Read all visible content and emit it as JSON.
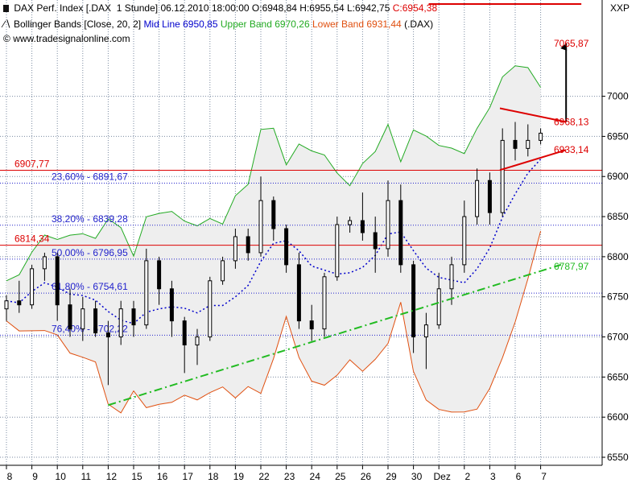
{
  "header": {
    "line1_name": "DAX Perf. Index [.DAX  1 Stunde]",
    "line1_date": "06.12.2010 18:00:00",
    "line1_ohl": "O:6948,84 H:6955,54 L:6942,75",
    "line1_close": "C:6954,38",
    "line2_name": "Bollinger Bands [Close, 20, 2]",
    "line2_mid": "Mid Line 6950,85",
    "line2_upper": "Upper Band 6970,26",
    "line2_lower": "Lower Band 6931,44",
    "line2_symbol": "(.DAX)",
    "site": "www.tradesignalonline.com"
  },
  "colors": {
    "text": "#000000",
    "mid_line": "#0000cc",
    "upper_band": "#22aa22",
    "lower_band": "#e05010",
    "horizontal": "#dd0000",
    "fib": "#2222cc",
    "trend": "#22bb22",
    "bull": "#000000",
    "bear": "#000000"
  },
  "chart_data": {
    "type": "candlestick",
    "ylabel": "XXP",
    "ylim": [
      6540,
      7120
    ],
    "yticks": [
      6550,
      6600,
      6650,
      6700,
      6750,
      6800,
      6850,
      6900,
      6950,
      7000
    ],
    "ytick_labels": [
      "6550",
      "6600",
      "6650",
      "6700",
      "6750",
      "6800",
      "6850",
      "6900",
      "6950",
      "7000"
    ],
    "x_labels": [
      "8",
      "9",
      "10",
      "11",
      "12",
      "15",
      "16",
      "17",
      "18",
      "19",
      "22",
      "23",
      "24",
      "25",
      "26",
      "29",
      "30",
      "Dez",
      "2",
      "3",
      "6",
      "7"
    ],
    "horizontal_lines": [
      {
        "label": "6907,77",
        "value": 6907.77,
        "style": "solid",
        "color": "red"
      },
      {
        "label": "6814,34",
        "value": 6814.34,
        "style": "solid",
        "color": "red"
      }
    ],
    "fibonacci": [
      {
        "label": "23,60% - 6891,67",
        "value": 6891.67
      },
      {
        "label": "38,20% - 6839,28",
        "value": 6839.28
      },
      {
        "label": "50,00% - 6796,95",
        "value": 6796.95
      },
      {
        "label": "61,80% - 6754,61",
        "value": 6754.61
      },
      {
        "label": "76,40% - 6702,22",
        "value": 6702.22
      }
    ],
    "annotations": [
      {
        "label": "7065,87",
        "value": 7065.87
      },
      {
        "label": "6968,13",
        "value": 6968.13
      },
      {
        "label": "6933,14",
        "value": 6933.14
      },
      {
        "label": "6787,97",
        "value": 6787.97
      }
    ],
    "trendline": {
      "style": "dash-dot",
      "points": [
        [
          12,
          6615
        ],
        [
          49,
          6790
        ]
      ]
    },
    "triangle": {
      "upper": [
        [
          38,
          6985
        ],
        [
          44,
          6968
        ]
      ],
      "lower": [
        [
          38,
          6908
        ],
        [
          44,
          6933
        ]
      ]
    },
    "projection": [
      [
        44,
        6968
      ],
      [
        46.5,
        7065.87
      ]
    ],
    "close_marker": {
      "label": "C:6954,38",
      "value": 7115
    },
    "candles": [
      {
        "day": 0,
        "o": 6735,
        "h": 6752,
        "l": 6720,
        "c": 6745
      },
      {
        "day": 0.5,
        "o": 6745,
        "h": 6770,
        "l": 6730,
        "c": 6740
      },
      {
        "day": 1,
        "o": 6740,
        "h": 6790,
        "l": 6735,
        "c": 6785
      },
      {
        "day": 1.5,
        "o": 6785,
        "h": 6805,
        "l": 6770,
        "c": 6800
      },
      {
        "day": 2,
        "o": 6800,
        "h": 6805,
        "l": 6720,
        "c": 6740
      },
      {
        "day": 2.5,
        "o": 6740,
        "h": 6760,
        "l": 6700,
        "c": 6710
      },
      {
        "day": 3,
        "o": 6710,
        "h": 6750,
        "l": 6695,
        "c": 6735
      },
      {
        "day": 3.5,
        "o": 6735,
        "h": 6745,
        "l": 6700,
        "c": 6705
      },
      {
        "day": 4,
        "o": 6705,
        "h": 6720,
        "l": 6640,
        "c": 6700
      },
      {
        "day": 4.5,
        "o": 6700,
        "h": 6745,
        "l": 6690,
        "c": 6735
      },
      {
        "day": 5,
        "o": 6735,
        "h": 6745,
        "l": 6700,
        "c": 6715
      },
      {
        "day": 5.5,
        "o": 6715,
        "h": 6810,
        "l": 6710,
        "c": 6795
      },
      {
        "day": 6,
        "o": 6795,
        "h": 6800,
        "l": 6740,
        "c": 6760
      },
      {
        "day": 6.5,
        "o": 6760,
        "h": 6770,
        "l": 6700,
        "c": 6720
      },
      {
        "day": 7,
        "o": 6720,
        "h": 6725,
        "l": 6655,
        "c": 6690
      },
      {
        "day": 7.5,
        "o": 6690,
        "h": 6710,
        "l": 6665,
        "c": 6700
      },
      {
        "day": 8,
        "o": 6700,
        "h": 6775,
        "l": 6695,
        "c": 6770
      },
      {
        "day": 8.5,
        "o": 6770,
        "h": 6800,
        "l": 6765,
        "c": 6795
      },
      {
        "day": 9,
        "o": 6795,
        "h": 6835,
        "l": 6785,
        "c": 6825
      },
      {
        "day": 9.5,
        "o": 6825,
        "h": 6835,
        "l": 6795,
        "c": 6805
      },
      {
        "day": 10,
        "o": 6805,
        "h": 6900,
        "l": 6800,
        "c": 6870
      },
      {
        "day": 10.5,
        "o": 6870,
        "h": 6875,
        "l": 6820,
        "c": 6835
      },
      {
        "day": 11,
        "o": 6835,
        "h": 6840,
        "l": 6780,
        "c": 6790
      },
      {
        "day": 11.5,
        "o": 6790,
        "h": 6805,
        "l": 6710,
        "c": 6720
      },
      {
        "day": 12,
        "o": 6720,
        "h": 6740,
        "l": 6695,
        "c": 6710
      },
      {
        "day": 12.5,
        "o": 6710,
        "h": 6780,
        "l": 6700,
        "c": 6775
      },
      {
        "day": 13,
        "o": 6775,
        "h": 6850,
        "l": 6770,
        "c": 6840
      },
      {
        "day": 13.5,
        "o": 6840,
        "h": 6850,
        "l": 6830,
        "c": 6845
      },
      {
        "day": 14,
        "o": 6845,
        "h": 6880,
        "l": 6820,
        "c": 6830
      },
      {
        "day": 14.5,
        "o": 6830,
        "h": 6850,
        "l": 6780,
        "c": 6810
      },
      {
        "day": 15,
        "o": 6810,
        "h": 6895,
        "l": 6800,
        "c": 6870
      },
      {
        "day": 15.5,
        "o": 6870,
        "h": 6890,
        "l": 6780,
        "c": 6790
      },
      {
        "day": 16,
        "o": 6790,
        "h": 6795,
        "l": 6680,
        "c": 6700
      },
      {
        "day": 16.5,
        "o": 6700,
        "h": 6730,
        "l": 6660,
        "c": 6715
      },
      {
        "day": 17,
        "o": 6715,
        "h": 6780,
        "l": 6710,
        "c": 6760
      },
      {
        "day": 17.5,
        "o": 6760,
        "h": 6800,
        "l": 6740,
        "c": 6790
      },
      {
        "day": 18,
        "o": 6790,
        "h": 6870,
        "l": 6780,
        "c": 6850
      },
      {
        "day": 18.5,
        "o": 6850,
        "h": 6910,
        "l": 6840,
        "c": 6895
      },
      {
        "day": 19,
        "o": 6895,
        "h": 6905,
        "l": 6840,
        "c": 6855
      },
      {
        "day": 19.5,
        "o": 6855,
        "h": 6960,
        "l": 6850,
        "c": 6945
      },
      {
        "day": 20,
        "o": 6945,
        "h": 6968,
        "l": 6920,
        "c": 6935
      },
      {
        "day": 20.5,
        "o": 6935,
        "h": 6965,
        "l": 6925,
        "c": 6945
      },
      {
        "day": 21,
        "o": 6945,
        "h": 6960,
        "l": 6940,
        "c": 6954
      }
    ]
  }
}
